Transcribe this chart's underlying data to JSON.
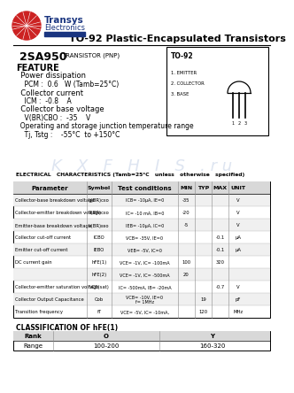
{
  "title": "TO-92 Plastic-Encapsulated Transistors",
  "part_number": "2SA950",
  "part_type": "TRANSISTOR (PNP)",
  "package": "TO-92",
  "logo_text1": "Transys",
  "logo_text2": "Electronics",
  "elec_title": "ELECTRICAL   CHARACTERISTICS (Tamb=25°C   unless   otherwise   specified)",
  "table_headers": [
    "Parameter",
    "Symbol",
    "Test conditions",
    "MIN",
    "TYP",
    "MAX",
    "UNIT"
  ],
  "table_rows": [
    [
      "Collector-base breakdown voltage",
      "V(BR)ᴄᴇᴏ",
      "ICB= -10μA, IE=0",
      "-35",
      "",
      "",
      "V"
    ],
    [
      "Collector-emitter breakdown voltage",
      "V(BR)ᴄᴇᴏ",
      "IC= -10 mA, IB=0",
      "-20",
      "",
      "",
      "V"
    ],
    [
      "Emitter-base breakdown voltage",
      "V(BR)ᴇᴇᴏ",
      "IEB= -10μA, IC=0",
      "-5",
      "",
      "",
      "V"
    ],
    [
      "Collector cut-off current",
      "ICBO",
      "VCB= -35V, IE=0",
      "",
      "",
      "-0.1",
      "μA"
    ],
    [
      "Emitter cut-off current",
      "IEBO",
      "VEB= -5V, IC=0",
      "",
      "",
      "-0.1",
      "μA"
    ],
    [
      "DC current gain",
      "hFE(1)",
      "VCE= -1V, IC= -100mA",
      "100",
      "",
      "320",
      ""
    ],
    [
      "",
      "hFE(2)",
      "VCE= -1V, IC= -500mA",
      "20",
      "",
      "",
      ""
    ],
    [
      "Collector-emitter saturation voltage",
      "VCE(sat)",
      "IC= -500mA, IB= -20mA",
      "",
      "",
      "-0.7",
      "V"
    ],
    [
      "Collector Output Capacitance",
      "Cob",
      "VCB= -10V, IE=0\nf= 1MHz",
      "",
      "19",
      "",
      "pF"
    ],
    [
      "Transition frequency",
      "fT",
      "VCE= -5V, IC= -10mA,",
      "",
      "120",
      "",
      "MHz"
    ]
  ],
  "class_title": "CLASSIFICATION OF hFE(1)",
  "class_headers": [
    "Rank",
    "O",
    "Y"
  ],
  "class_rows": [
    [
      "Range",
      "100-200",
      "160-320"
    ]
  ],
  "pin_labels": [
    "1. EMITTER",
    "2. COLLECTOR",
    "3. BASE"
  ],
  "pin_numbers": "1   2   3",
  "feature_lines": [
    [
      "FEATURE",
      7,
      true
    ],
    [
      "  Power dissipation",
      6,
      false
    ],
    [
      "    PCM :  0.6   W (Tamb=25°C)",
      5.5,
      false
    ],
    [
      "  Collector current",
      6,
      false
    ],
    [
      "    ICM :  -0.8    A",
      5.5,
      false
    ],
    [
      "  Collector base voltage",
      6,
      false
    ],
    [
      "    V(BR)CBO :  -35    V",
      5.5,
      false
    ],
    [
      "  Operating and storage junction temperature range",
      5.5,
      false
    ],
    [
      "    Tj, Tstg :    -55°C  to +150°C",
      5.5,
      false
    ]
  ]
}
